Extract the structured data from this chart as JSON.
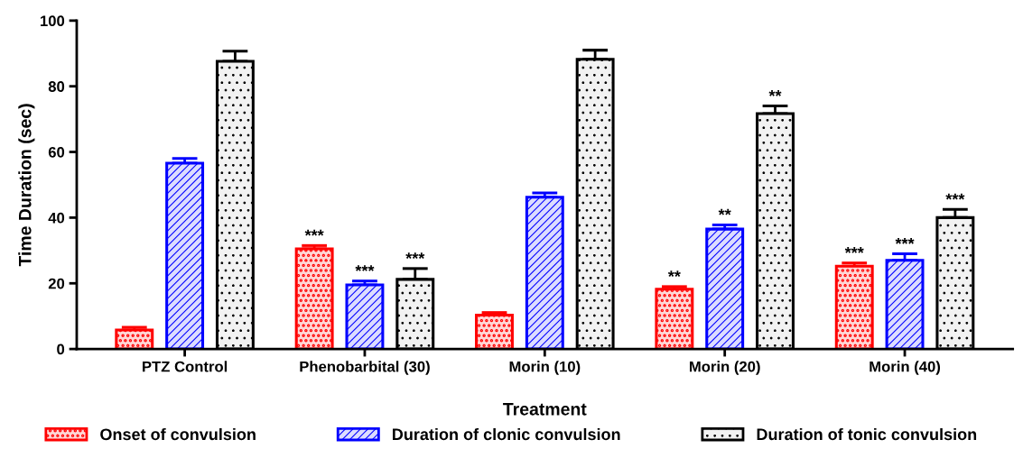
{
  "chart_data": {
    "type": "bar",
    "xlabel": "Treatment",
    "ylabel": "Time Duration (sec)",
    "categories": [
      "PTZ Control",
      "Phenobarbital (30)",
      "Morin (10)",
      "Morin (20)",
      "Morin (40)"
    ],
    "series": [
      {
        "name": "Onset of convulsion",
        "color": "#ff0000",
        "values": [
          5.8,
          30.5,
          10.3,
          18.2,
          25.2
        ],
        "errors": [
          0.8,
          1.0,
          0.8,
          0.8,
          1.0
        ],
        "value_labels": [
          null,
          "***",
          null,
          "**",
          "***"
        ]
      },
      {
        "name": "Duration of clonic convulsion",
        "color": "#0000ff",
        "values": [
          56.6,
          19.5,
          46.2,
          36.5,
          27.0
        ],
        "errors": [
          1.4,
          1.2,
          1.3,
          1.3,
          2.0
        ],
        "value_labels": [
          null,
          "***",
          null,
          "**",
          "***"
        ]
      },
      {
        "name": "Duration of tonic convulsion",
        "color": "#000000",
        "values": [
          87.6,
          21.2,
          88.2,
          71.7,
          40.0
        ],
        "errors": [
          3.1,
          3.3,
          2.8,
          2.3,
          2.5
        ],
        "value_labels": [
          null,
          "***",
          null,
          "**",
          "***"
        ]
      }
    ],
    "ylim": [
      0,
      100
    ],
    "yticks": [
      0,
      20,
      40,
      60,
      80,
      100
    ],
    "grid": false,
    "legend": "bottom"
  }
}
